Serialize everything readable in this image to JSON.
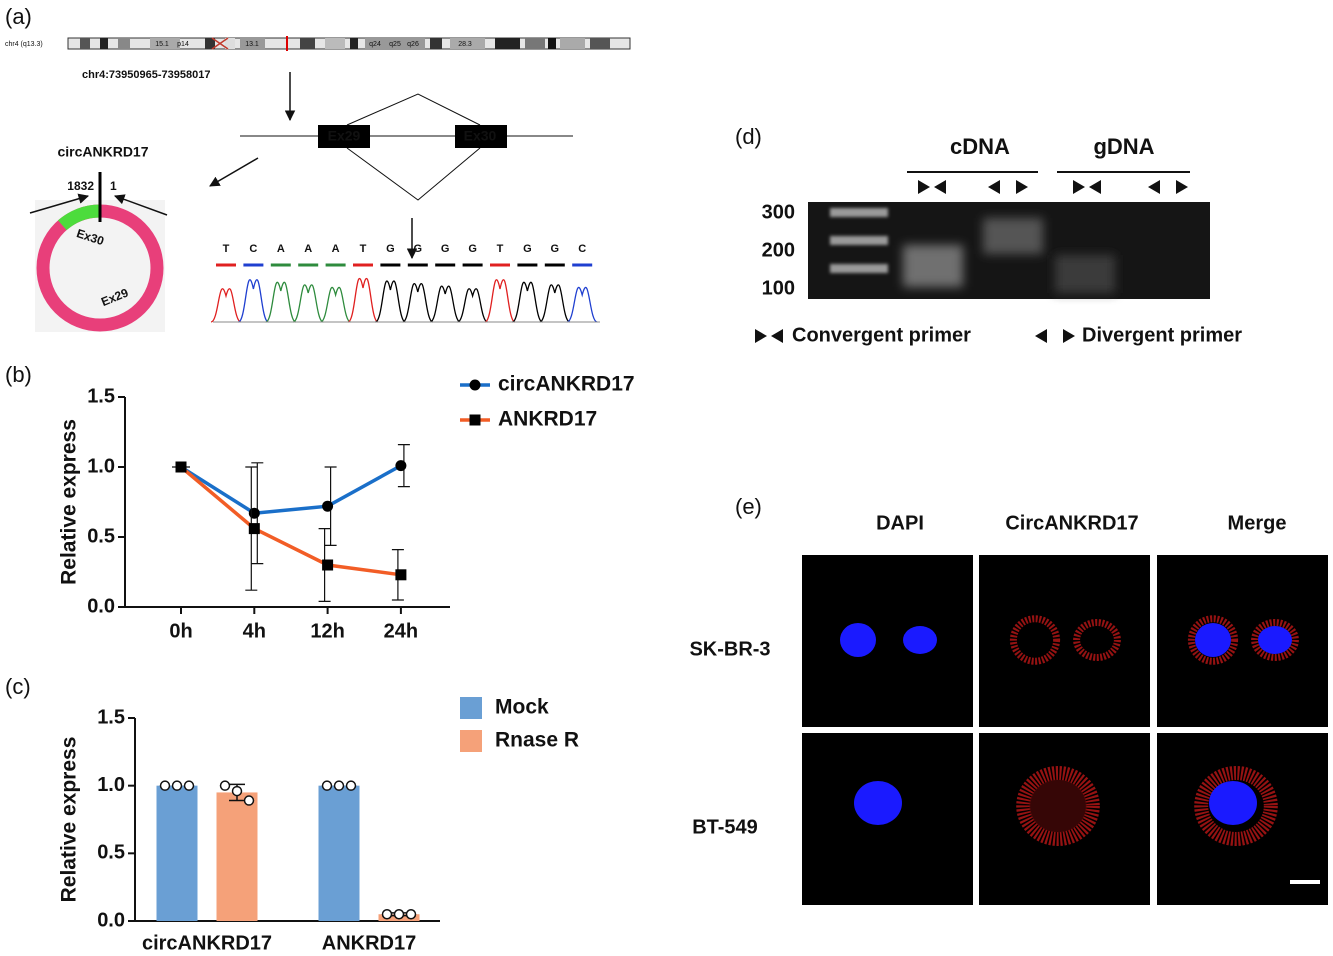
{
  "panel_labels": [
    "(a)",
    "(b)",
    "(c)",
    "(d)",
    "(e)"
  ],
  "panel_a": {
    "chrom_label": "chr4 (q13.3)",
    "bands": [
      "15.1",
      "p14",
      "13.1",
      "q24",
      "q25",
      "q26",
      "28.3"
    ],
    "locus": "chr4:73950965-73958017",
    "exons": [
      "Ex29",
      "Ex30"
    ],
    "circ_name": "circANKRD17",
    "junction": [
      "1832",
      "1"
    ],
    "circ_exons": [
      "Ex30",
      "Ex29"
    ],
    "sequence": [
      "T",
      "C",
      "A",
      "A",
      "A",
      "T",
      "G",
      "G",
      "G",
      "G",
      "T",
      "G",
      "G",
      "C"
    ]
  },
  "chart_data": [
    {
      "type": "line",
      "y_label": "Relative express",
      "categories": [
        "0h",
        "4h",
        "12h",
        "24h"
      ],
      "series": [
        {
          "name": "circANKRD17",
          "color": "#1a6fc9",
          "marker": "circle",
          "values": [
            1.0,
            0.67,
            0.72,
            1.01
          ],
          "errors": [
            0,
            0.36,
            0.28,
            0.15
          ]
        },
        {
          "name": "ANKRD17",
          "color": "#f25d26",
          "marker": "square",
          "values": [
            1.0,
            0.56,
            0.3,
            0.23
          ],
          "errors": [
            0,
            0.44,
            0.26,
            0.18
          ]
        }
      ],
      "ylim": [
        0,
        1.5
      ],
      "yticks": [
        {
          "value": 0,
          "label": "0.0"
        },
        0.5,
        {
          "value": 1,
          "label": "1.0"
        },
        1.5
      ],
      "legend": "top-right"
    },
    {
      "type": "bar",
      "y_label": "Relative express",
      "categories": [
        "circANKRD17",
        "ANKRD17"
      ],
      "series": [
        {
          "name": "Mock",
          "color": "#6a9fd4",
          "values": [
            1.0,
            1.0
          ],
          "errors": [
            0,
            0
          ],
          "points": [
            [
              1.0,
              1.0,
              1.0
            ],
            [
              1.0,
              1.0,
              1.0
            ]
          ]
        },
        {
          "name": "Rnase R",
          "color": "#f5a179",
          "values": [
            0.95,
            0.05
          ],
          "errors": [
            0.06,
            0.01
          ],
          "points": [
            [
              1.0,
              0.96,
              0.89
            ],
            [
              0.05,
              0.05,
              0.05
            ]
          ]
        }
      ],
      "ylim": [
        0,
        1.5
      ],
      "yticks": [
        {
          "value": 0,
          "label": "0.0"
        },
        0.5,
        {
          "value": 1,
          "label": "1.0"
        },
        1.5
      ],
      "legend": "top-right"
    }
  ],
  "panel_d": {
    "groups": [
      "cDNA",
      "gDNA"
    ],
    "ladder": [
      300,
      200,
      100
    ],
    "primers": [
      "Convergent primer",
      "Divergent primer"
    ]
  },
  "panel_e": {
    "columns": [
      "DAPI",
      "CircANKRD17",
      "Merge"
    ],
    "rows": [
      "SK-BR-3",
      "BT-549"
    ]
  }
}
